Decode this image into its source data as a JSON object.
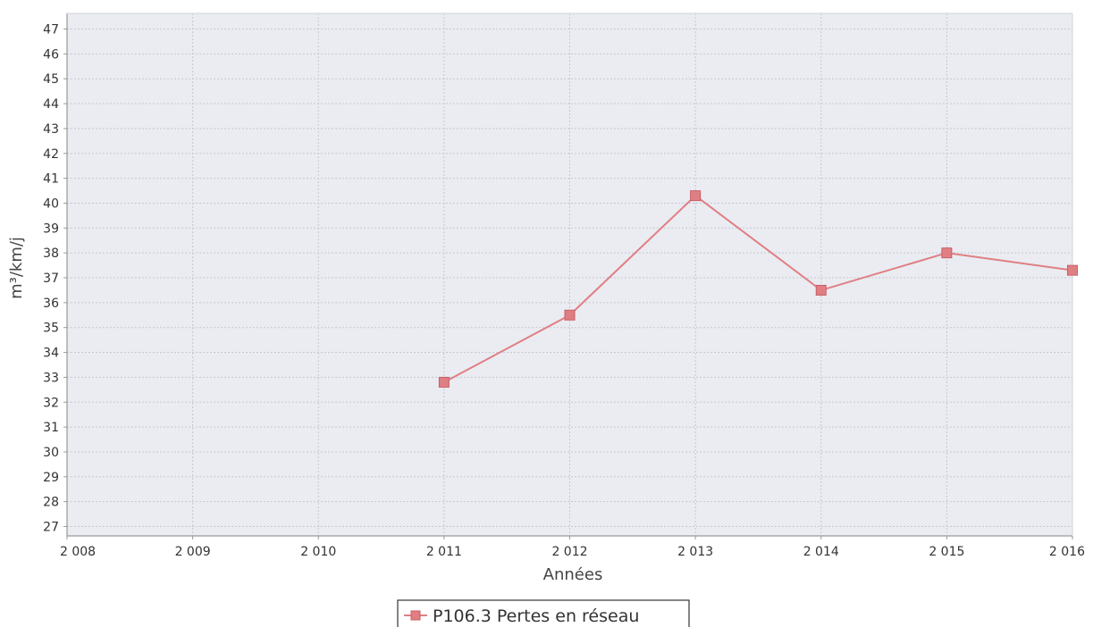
{
  "chart_data": {
    "type": "line",
    "xlabel": "Années",
    "ylabel": "m³/km/j",
    "xlim": [
      2008,
      2016
    ],
    "ylim": [
      27,
      47
    ],
    "x_ticks": [
      "2 008",
      "2 009",
      "2 010",
      "2 011",
      "2 012",
      "2 013",
      "2 014",
      "2 015",
      "2 016"
    ],
    "y_ticks": [
      27,
      28,
      29,
      30,
      31,
      32,
      33,
      34,
      35,
      36,
      37,
      38,
      39,
      40,
      41,
      42,
      43,
      44,
      45,
      46,
      47
    ],
    "grid": true,
    "legend_position": "bottom-center",
    "series": [
      {
        "name": "P106.3 Pertes en réseau",
        "color": "#e07f83",
        "marker": "square",
        "points": [
          {
            "x": 2011,
            "y": 32.8
          },
          {
            "x": 2012,
            "y": 35.5
          },
          {
            "x": 2013,
            "y": 40.3
          },
          {
            "x": 2014,
            "y": 36.5
          },
          {
            "x": 2015,
            "y": 38.0
          },
          {
            "x": 2016,
            "y": 37.3
          }
        ]
      }
    ],
    "colors": {
      "plot_background": "#eaecf2",
      "grid": "#c4c8cf",
      "axis": "#9a9a9a"
    }
  }
}
